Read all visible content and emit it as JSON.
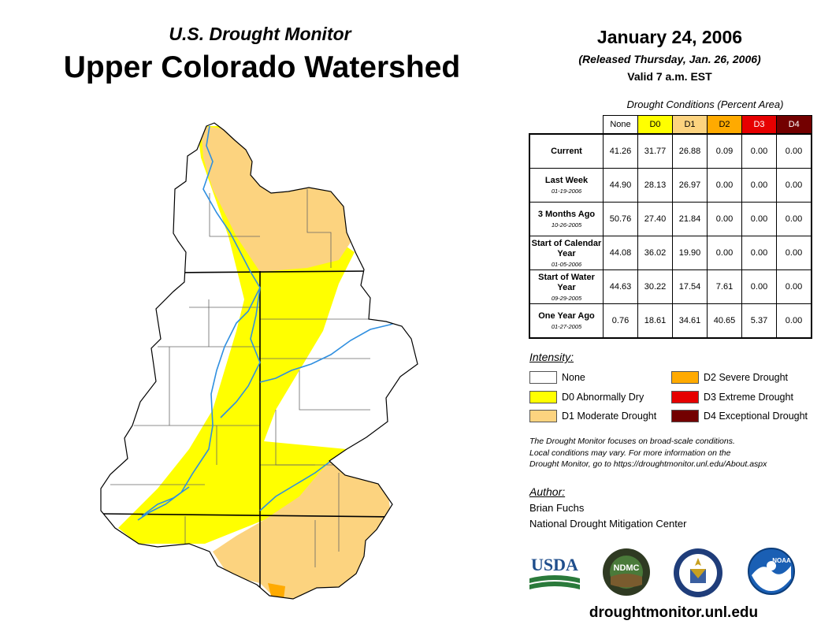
{
  "header": {
    "subtitle": "U.S. Drought Monitor",
    "title": "Upper Colorado Watershed",
    "date": "January 24, 2006",
    "released": "(Released Thursday, Jan. 26, 2006)",
    "valid": "Valid 7 a.m. EST"
  },
  "table": {
    "caption": "Drought Conditions (Percent Area)",
    "columns": [
      "None",
      "D0",
      "D1",
      "D2",
      "D3",
      "D4"
    ],
    "column_colors": [
      "#ffffff",
      "#ffff00",
      "#fcd37f",
      "#ffaa00",
      "#e60000",
      "#730000"
    ],
    "rows": [
      {
        "label": "Current",
        "date": "",
        "values": [
          "41.26",
          "31.77",
          "26.88",
          "0.09",
          "0.00",
          "0.00"
        ]
      },
      {
        "label": "Last Week",
        "date": "01-19-2006",
        "values": [
          "44.90",
          "28.13",
          "26.97",
          "0.00",
          "0.00",
          "0.00"
        ]
      },
      {
        "label": "3 Months Ago",
        "date": "10-26-2005",
        "values": [
          "50.76",
          "27.40",
          "21.84",
          "0.00",
          "0.00",
          "0.00"
        ]
      },
      {
        "label": "Start of Calendar Year",
        "date": "01-05-2006",
        "values": [
          "44.08",
          "36.02",
          "19.90",
          "0.00",
          "0.00",
          "0.00"
        ]
      },
      {
        "label": "Start of Water Year",
        "date": "09-29-2005",
        "values": [
          "44.63",
          "30.22",
          "17.54",
          "7.61",
          "0.00",
          "0.00"
        ]
      },
      {
        "label": "One Year Ago",
        "date": "01-27-2005",
        "values": [
          "0.76",
          "18.61",
          "34.61",
          "40.65",
          "5.37",
          "0.00"
        ]
      }
    ]
  },
  "legend": {
    "title": "Intensity:",
    "items": [
      {
        "label": "None",
        "color": "#ffffff"
      },
      {
        "label": "D0 Abnormally Dry",
        "color": "#ffff00"
      },
      {
        "label": "D1 Moderate Drought",
        "color": "#fcd37f"
      },
      {
        "label": "D2 Severe Drought",
        "color": "#ffaa00"
      },
      {
        "label": "D3 Extreme Drought",
        "color": "#e60000"
      },
      {
        "label": "D4 Exceptional Drought",
        "color": "#730000"
      }
    ]
  },
  "note": {
    "line1": "The Drought Monitor focuses on broad-scale conditions.",
    "line2": "Local conditions may vary. For more information on the",
    "line3": "Drought Monitor, go to https://droughtmonitor.unl.edu/About.aspx"
  },
  "author": {
    "title": "Author:",
    "name": "Brian Fuchs",
    "org": "National Drought Mitigation Center"
  },
  "logos": {
    "usda": "USDA",
    "ndmc": "NDMC",
    "noaa": "NOAA"
  },
  "footer": {
    "site": "droughtmonitor.unl.edu"
  },
  "map": {
    "river_color": "#2f8fe0",
    "boundary_color": "#000000"
  }
}
